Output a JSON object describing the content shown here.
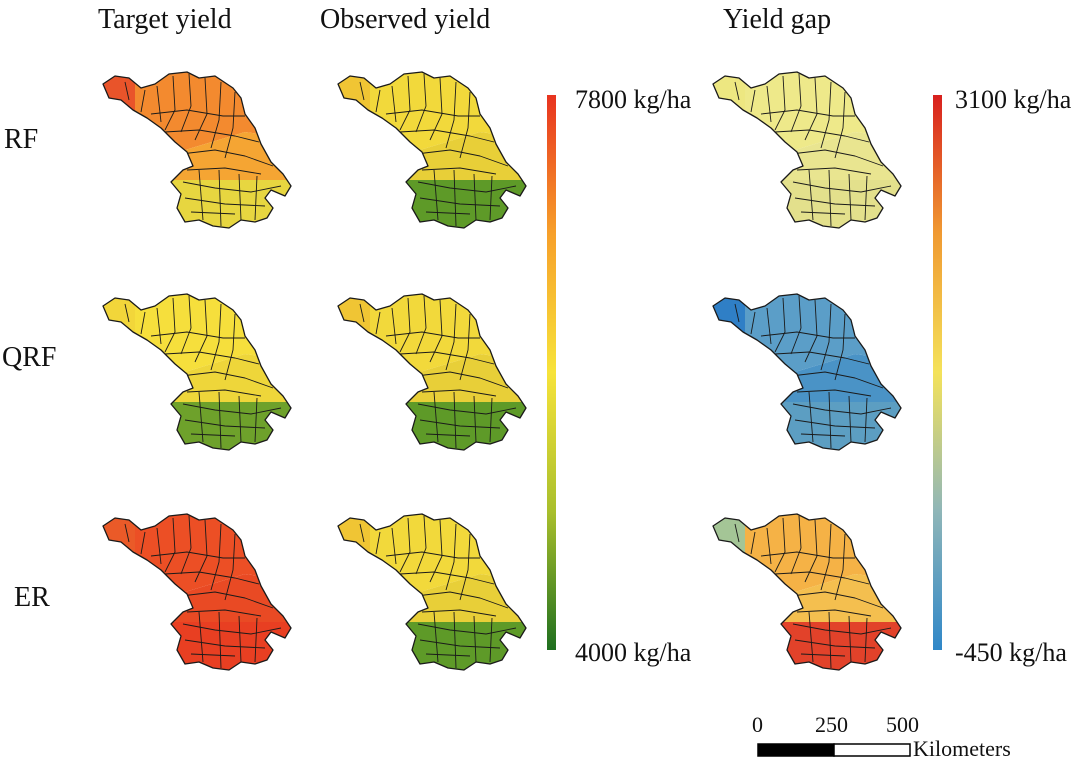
{
  "columns": [
    "Target yield",
    "Observed yield",
    "Yield gap"
  ],
  "rows": [
    "RF",
    "QRF",
    "ER"
  ],
  "legend_yield": {
    "max_label": "7800 kg/ha",
    "min_label": "4000 kg/ha",
    "colors": [
      "#1f6f1f",
      "#a9bf2c",
      "#f7e33a",
      "#f7a02a",
      "#e8331f"
    ]
  },
  "legend_gap": {
    "max_label": "3100 kg/ha",
    "min_label": "-450 kg/ha",
    "colors": [
      "#2f87c8",
      "#8fb6b8",
      "#f4e25a",
      "#f09a32",
      "#d8201e"
    ]
  },
  "scalebar": {
    "ticks": [
      "0",
      "250",
      "500"
    ],
    "unit": "Kilometers"
  },
  "maps": [
    {
      "row": "RF",
      "col": "Target yield",
      "north": "#f38a2f",
      "mid": "#f5a533",
      "south": "#e7d640",
      "west": "#e9542a"
    },
    {
      "row": "RF",
      "col": "Observed yield",
      "north": "#f2d93b",
      "mid": "#e8cf38",
      "south": "#5e9a28",
      "west": "#f0c534"
    },
    {
      "row": "RF",
      "col": "Yield gap",
      "north": "#eee98a",
      "mid": "#e9e590",
      "south": "#e3e08c",
      "west": "#ede781"
    },
    {
      "row": "QRF",
      "col": "Target yield",
      "north": "#f6df3c",
      "mid": "#eed63a",
      "south": "#6ea12b",
      "west": "#f2d63a"
    },
    {
      "row": "QRF",
      "col": "Observed yield",
      "north": "#f2d93b",
      "mid": "#e8cf38",
      "south": "#5e9a28",
      "west": "#f0c534"
    },
    {
      "row": "QRF",
      "col": "Yield gap",
      "north": "#5b9ec8",
      "mid": "#4a93c6",
      "south": "#5c9ec2",
      "west": "#2f7fc6"
    },
    {
      "row": "ER",
      "col": "Target yield",
      "north": "#ec4f25",
      "mid": "#e94a24",
      "south": "#e83f22",
      "west": "#ea5a28"
    },
    {
      "row": "ER",
      "col": "Observed yield",
      "north": "#f2d93b",
      "mid": "#e8cf38",
      "south": "#5e9a28",
      "west": "#f0c534"
    },
    {
      "row": "ER",
      "col": "Yield gap",
      "north": "#f5b246",
      "mid": "#f4bf4f",
      "south": "#e2422a",
      "west": "#a4c596"
    }
  ]
}
